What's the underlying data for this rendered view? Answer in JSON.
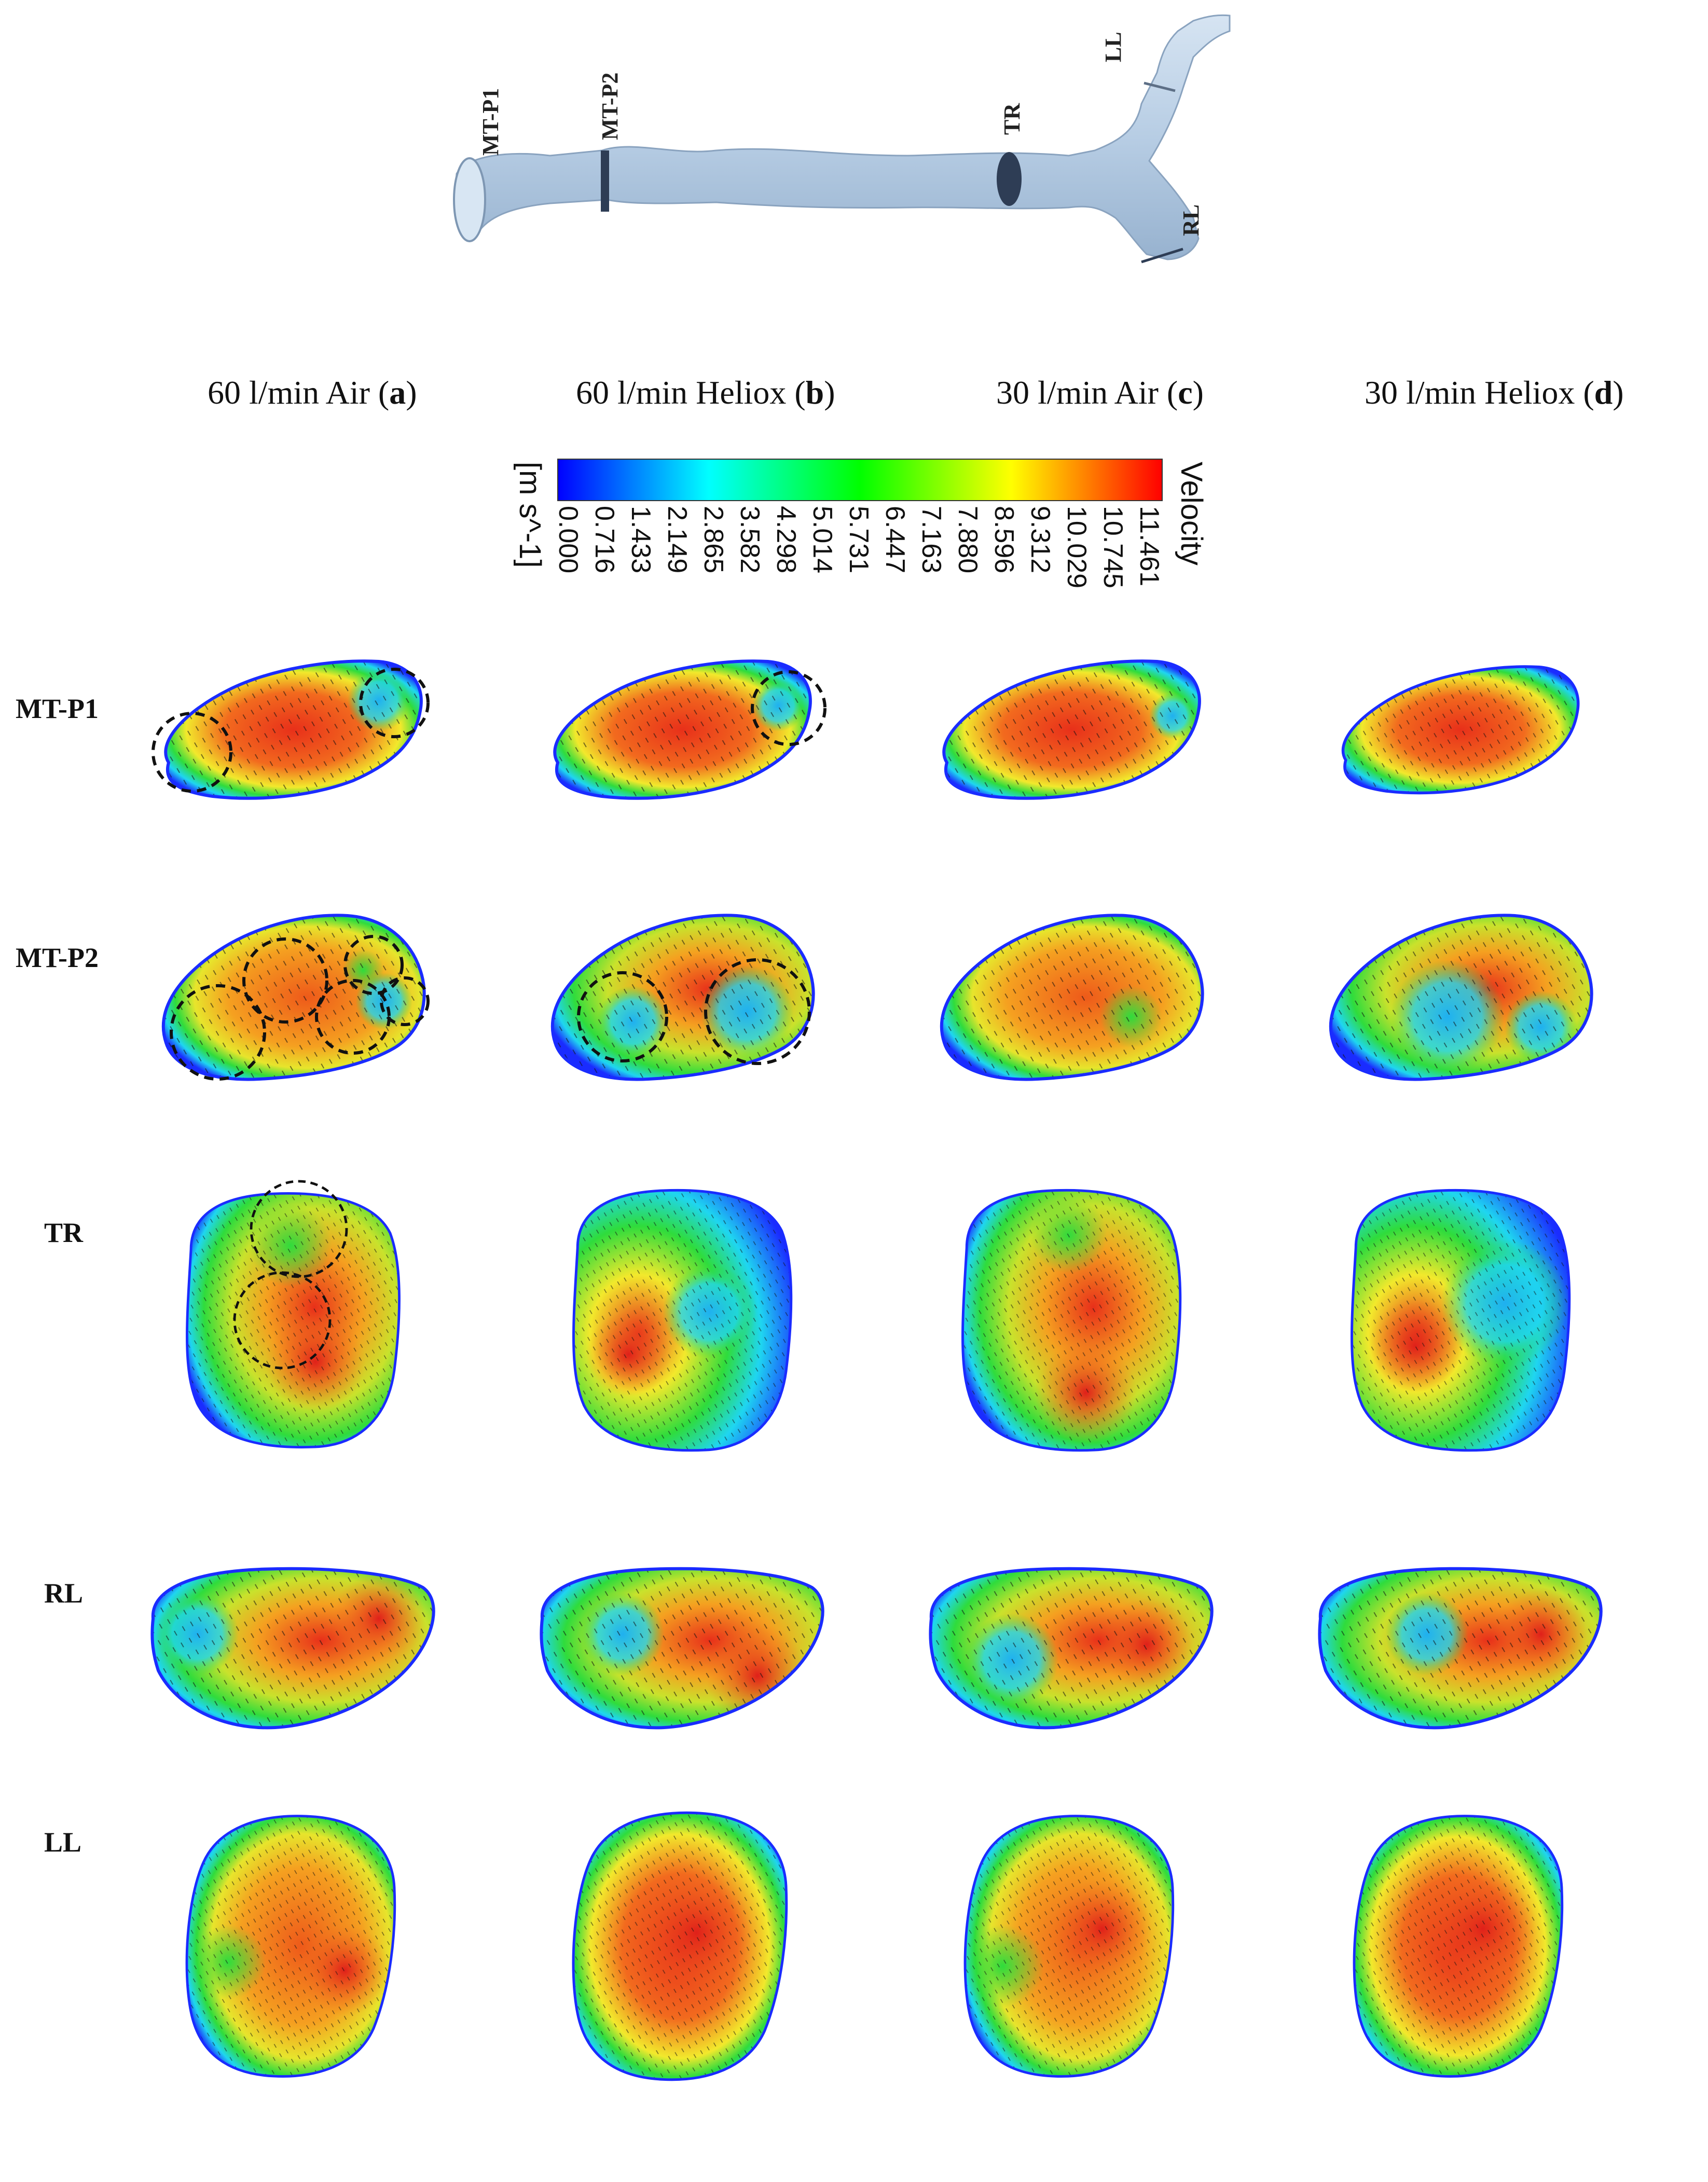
{
  "airway": {
    "planes": [
      "MT-P1",
      "MT-P2",
      "TR",
      "LL",
      "RL"
    ],
    "body_color": "#b9cfe6",
    "plane_color": "#2e3d55"
  },
  "columns": [
    {
      "text": "60 l/min Air (",
      "letter": "a",
      "close": ")"
    },
    {
      "text": "60 l/min Heliox (",
      "letter": "b",
      "close": ")"
    },
    {
      "text": "30 l/min Air (",
      "letter": "c",
      "close": ")"
    },
    {
      "text": "30 l/min Heliox (",
      "letter": "d",
      "close": ")"
    }
  ],
  "colorbar": {
    "title": "Velocity",
    "unit": "[m s^-1]",
    "ticks": [
      "0.000",
      "0.716",
      "1.433",
      "2.149",
      "2.865",
      "3.582",
      "4.298",
      "5.014",
      "5.731",
      "6.447",
      "7.163",
      "7.880",
      "8.596",
      "9.312",
      "10.029",
      "10.745",
      "11.461"
    ],
    "colors": [
      "#0000ff",
      "#0080ff",
      "#00ffff",
      "#00ff80",
      "#00ff00",
      "#80ff00",
      "#ffff00",
      "#ff8000",
      "#ff0000"
    ]
  },
  "rows": [
    "MT-P1",
    "MT-P2",
    "TR",
    "RL",
    "LL"
  ],
  "palette": {
    "blue": "#1a2cff",
    "cyan": "#1fd6f0",
    "green": "#2fdc3c",
    "yellow": "#f2e92c",
    "orange": "#f58a1e",
    "red": "#e8301a"
  }
}
